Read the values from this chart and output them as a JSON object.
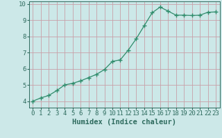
{
  "x": [
    0,
    1,
    2,
    3,
    4,
    5,
    6,
    7,
    8,
    9,
    10,
    11,
    12,
    13,
    14,
    15,
    16,
    17,
    18,
    19,
    20,
    21,
    22,
    23
  ],
  "y": [
    4.0,
    4.2,
    4.35,
    4.65,
    5.0,
    5.1,
    5.25,
    5.45,
    5.65,
    5.95,
    6.45,
    6.55,
    7.15,
    7.85,
    8.65,
    9.45,
    9.8,
    9.55,
    9.3,
    9.3,
    9.28,
    9.3,
    9.48,
    9.5
  ],
  "line_color": "#2e8b6a",
  "marker": "+",
  "marker_size": 4.0,
  "linewidth": 0.9,
  "bg_color": "#cce8e8",
  "grid_color": "#c8a0a8",
  "xlabel": "Humidex (Indice chaleur)",
  "xlim": [
    -0.5,
    23.5
  ],
  "ylim": [
    3.6,
    10.15
  ],
  "yticks": [
    4,
    5,
    6,
    7,
    8,
    9,
    10
  ],
  "xtick_labels": [
    "0",
    "1",
    "2",
    "3",
    "4",
    "5",
    "6",
    "7",
    "8",
    "9",
    "10",
    "11",
    "12",
    "13",
    "14",
    "15",
    "16",
    "17",
    "18",
    "19",
    "20",
    "21",
    "22",
    "23"
  ],
  "xlabel_fontsize": 7.5,
  "tick_fontsize": 6.5,
  "tick_color": "#2e6b5e",
  "axis_color": "#2e6b5e"
}
